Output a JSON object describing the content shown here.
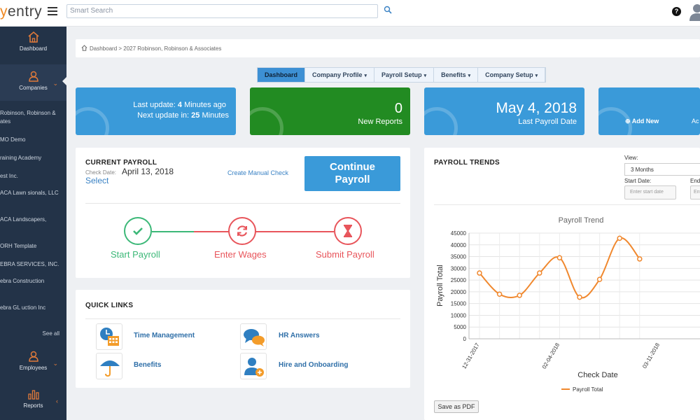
{
  "app": {
    "logo_first": "y",
    "logo_rest": "entry",
    "search_placeholder": "Smart Search",
    "help": "?"
  },
  "sidebar": {
    "dashboard": "Dashboard",
    "companies": "Companies",
    "employees": "Employees",
    "reports": "Reports",
    "companies_list": [
      "Robinson, Robinson & ates",
      "MO Demo",
      "raining Academy",
      "est Inc.",
      "ACA Lawn sionals, LLC",
      "ACA Landscapers,",
      "ORH Template",
      "EBRA SERVICES, INC.",
      "ebra Construction",
      "ebra GL uction Inc"
    ],
    "see_all": "See all"
  },
  "breadcrumb": "Dashboard > 2027 Robinson, Robinson & Associates",
  "tabs": [
    {
      "label": "Dashboard",
      "active": true,
      "caret": ""
    },
    {
      "label": "Company Profile",
      "active": false,
      "caret": "▾"
    },
    {
      "label": "Payroll Setup",
      "active": false,
      "caret": "▾"
    },
    {
      "label": "Benefits",
      "active": false,
      "caret": "▾"
    },
    {
      "label": "Company Setup",
      "active": false,
      "caret": "▾"
    }
  ],
  "cards": {
    "update": {
      "last_prefix": "Last update: ",
      "last_value": "4",
      "last_suffix": " Minutes ago",
      "next_prefix": "Next update in: ",
      "next_value": "25",
      "next_suffix": " Minutes"
    },
    "reports": {
      "count": "0",
      "label": "New Reports"
    },
    "last_payroll": {
      "date": "May 4, 2018",
      "label": "Last Payroll Date"
    },
    "add": {
      "label": "Add New",
      "action": "Ac"
    }
  },
  "current_payroll": {
    "title": "CURRENT PAYROLL",
    "check_date_label": "Check Date:",
    "check_date": "April 13, 2018",
    "select": "Select",
    "manual_check": "Create Manual Check",
    "continue_line1": "Continue",
    "continue_line2": "Payroll",
    "steps": [
      {
        "label": "Start Payroll",
        "color": "#3cb878"
      },
      {
        "label": "Enter Wages",
        "color": "#e8555b"
      },
      {
        "label": "Submit Payroll",
        "color": "#e8555b"
      }
    ]
  },
  "quick_links": {
    "title": "QUICK LINKS",
    "items": [
      {
        "label": "Time Management",
        "icon": "clock-calendar-icon"
      },
      {
        "label": "HR Answers",
        "icon": "chat-bubbles-icon"
      },
      {
        "label": "Benefits",
        "icon": "umbrella-icon"
      },
      {
        "label": "Hire and Onboarding",
        "icon": "add-person-icon"
      }
    ]
  },
  "trends": {
    "title": "PAYROLL TRENDS",
    "view_label": "View:",
    "view_value": "3 Months",
    "start_label": "Start Date:",
    "end_label": "End",
    "start_placeholder": "Enter start date",
    "end_placeholder": "Ent",
    "save_pdf": "Save as PDF"
  },
  "chart_data": {
    "type": "line",
    "title": "Payroll Trend",
    "xlabel": "Check Date",
    "ylabel": "Payroll Total",
    "ylim": [
      0,
      45000
    ],
    "yticks": [
      0,
      5000,
      10000,
      15000,
      20000,
      25000,
      30000,
      35000,
      40000,
      45000
    ],
    "xtick_labels": [
      "12-31-2017",
      "02-04-2018",
      "03-11-2018"
    ],
    "series": [
      {
        "name": "Payroll Total",
        "color": "#f0882e",
        "values": [
          28000,
          19000,
          18500,
          28000,
          34500,
          17700,
          25300,
          42800,
          34000
        ]
      }
    ]
  }
}
